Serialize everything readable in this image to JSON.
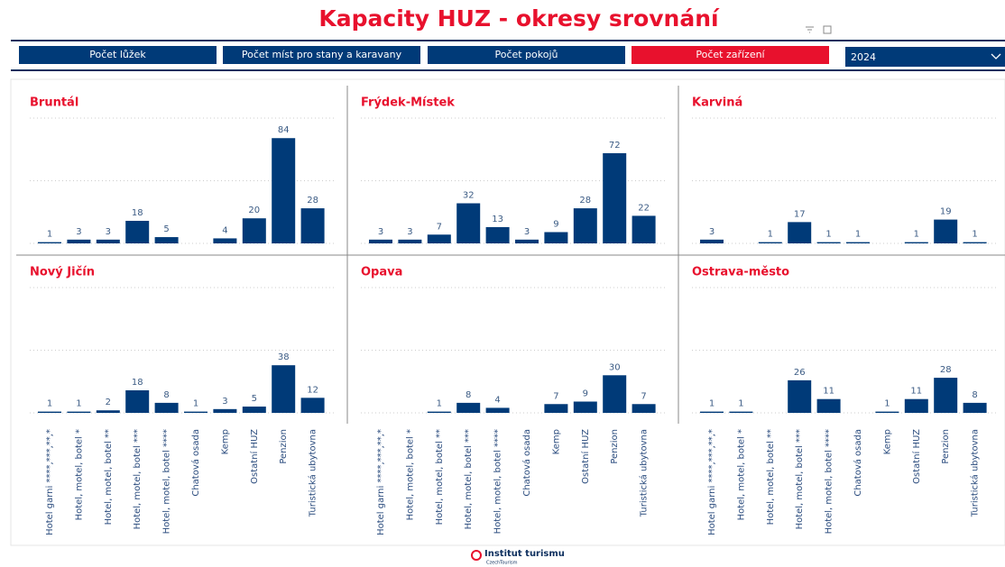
{
  "title": "Kapacity HUZ - okresy srovnání",
  "buttons": [
    "Počet lůžek",
    "Počet míst pro stany a karavany",
    "Počet pokojů",
    "Počet zařízení"
  ],
  "dropdown": "2024",
  "footer": {
    "logo": "Institut turismu",
    "sub": "CzechTourism"
  },
  "chart_data": [
    {
      "type": "bar",
      "title": "Bruntál",
      "color": "#003a78",
      "ylim": [
        0,
        100
      ],
      "yticks": [
        0,
        50,
        100
      ],
      "grid": true,
      "values": [
        1,
        3,
        3,
        18,
        5,
        null,
        4,
        20,
        84,
        28
      ]
    },
    {
      "type": "bar",
      "title": "Frýdek-Místek",
      "color": "#003a78",
      "ylim": [
        0,
        100
      ],
      "yticks": [
        0,
        50,
        100
      ],
      "grid": true,
      "values": [
        3,
        3,
        7,
        32,
        13,
        3,
        9,
        28,
        72,
        22
      ]
    },
    {
      "type": "bar",
      "title": "Karviná",
      "color": "#003a78",
      "ylim": [
        0,
        100
      ],
      "yticks": [
        0,
        50,
        100
      ],
      "grid": true,
      "values": [
        3,
        null,
        1,
        17,
        1,
        1,
        null,
        1,
        19,
        1
      ]
    },
    {
      "type": "bar",
      "title": "Nový Jičín",
      "color": "#003a78",
      "ylim": [
        0,
        100
      ],
      "yticks": [
        0,
        50,
        100
      ],
      "grid": true,
      "categories": [
        "Hotel garni ****,***,**,*",
        "Hotel, motel, botel *",
        "Hotel, motel, botel **",
        "Hotel, motel, botel ***",
        "Hotel, motel, botel ****",
        "Chatová osada",
        "Kemp",
        "Ostatní HUZ",
        "Penzion",
        "Turistická ubytovna"
      ],
      "values": [
        1,
        1,
        2,
        18,
        8,
        1,
        3,
        5,
        38,
        12
      ]
    },
    {
      "type": "bar",
      "title": "Opava",
      "color": "#003a78",
      "ylim": [
        0,
        100
      ],
      "yticks": [
        0,
        50,
        100
      ],
      "grid": true,
      "categories": [
        "Hotel garni ****,***,**,*",
        "Hotel, motel, botel *",
        "Hotel, motel, botel **",
        "Hotel, motel, botel ***",
        "Hotel, motel, botel ****",
        "Chatová osada",
        "Kemp",
        "Ostatní HUZ",
        "Penzion",
        "Turistická ubytovna"
      ],
      "values": [
        null,
        null,
        1,
        8,
        4,
        null,
        7,
        9,
        30,
        7
      ]
    },
    {
      "type": "bar",
      "title": "Ostrava-město",
      "color": "#003a78",
      "ylim": [
        0,
        100
      ],
      "yticks": [
        0,
        50,
        100
      ],
      "grid": true,
      "categories": [
        "Hotel garni ****,***,**,*",
        "Hotel, motel, botel *",
        "Hotel, motel, botel **",
        "Hotel, motel, botel ***",
        "Hotel, motel, botel ****",
        "Chatová osada",
        "Kemp",
        "Ostatní HUZ",
        "Penzion",
        "Turistická ubytovna"
      ],
      "values": [
        1,
        1,
        null,
        26,
        11,
        null,
        1,
        11,
        28,
        8
      ]
    }
  ]
}
